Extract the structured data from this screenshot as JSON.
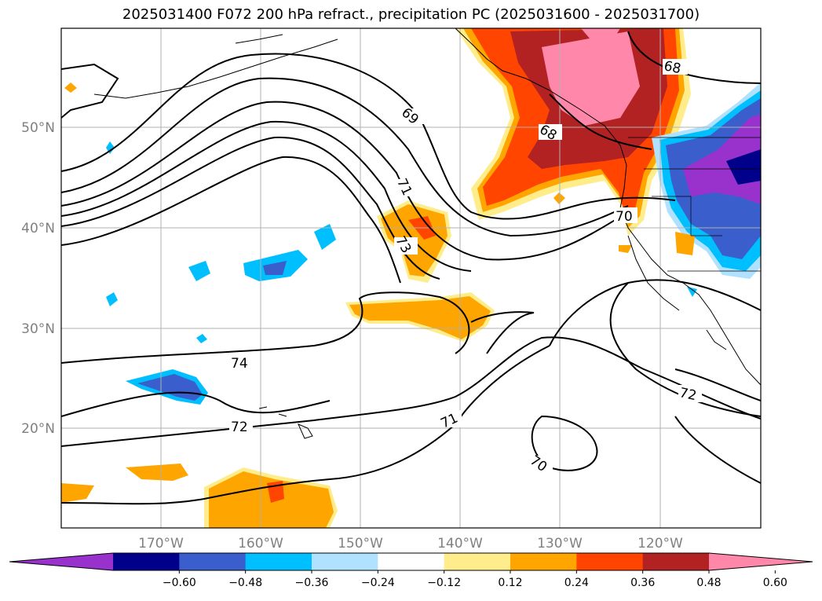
{
  "title": "2025031400 F072 200 hPa refract., precipitation PC (2025031600 - 2025031700)",
  "map": {
    "lat_labels": [
      "50°N",
      "40°N",
      "30°N",
      "20°N"
    ],
    "lon_labels": [
      "170°W",
      "160°W",
      "150°W",
      "140°W",
      "130°W",
      "120°W"
    ],
    "contour_labels": [
      "68",
      "69",
      "68",
      "71",
      "70",
      "73",
      "74",
      "72",
      "71",
      "72",
      "70"
    ]
  },
  "colorbar": {
    "colors": [
      "#9932CC",
      "#00008B",
      "#3A5FCD",
      "#00BFFF",
      "#B0E2FF",
      "#FFFFFF",
      "#FFEC8B",
      "#FFA500",
      "#FF4500",
      "#B22222",
      "#FF88AA"
    ],
    "tick_labels": [
      "-0.60",
      "-0.48",
      "-0.36",
      "-0.24",
      "-0.12",
      "0.12",
      "0.24",
      "0.36",
      "0.48",
      "0.60"
    ]
  }
}
